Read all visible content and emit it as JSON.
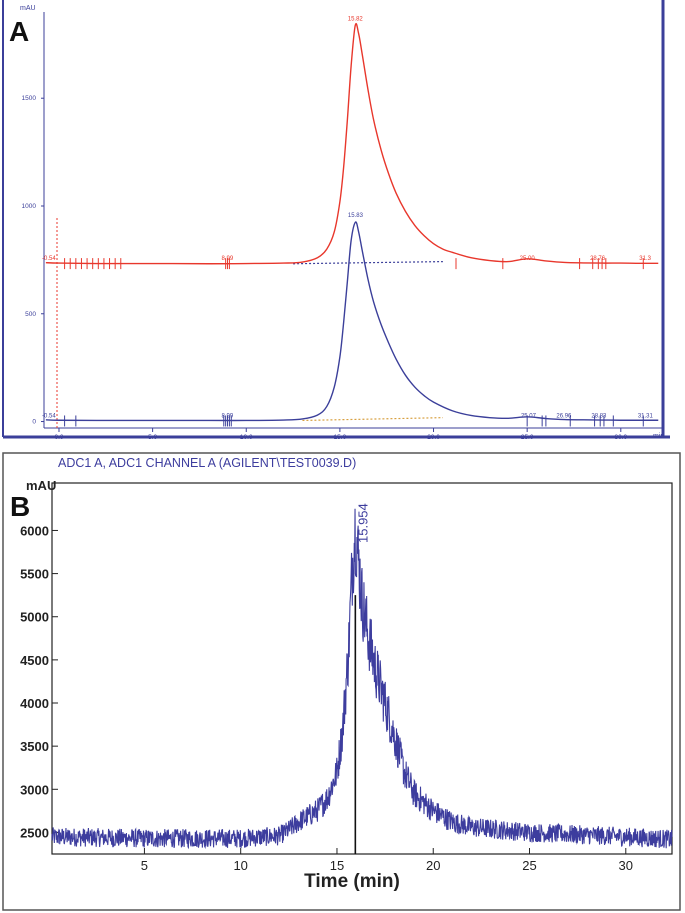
{
  "figure": {
    "panel_a_letter": "A",
    "panel_b_letter": "B"
  },
  "chart_data": [
    {
      "type": "line",
      "panel": "A",
      "ylabel": "mAU",
      "xunit": "min",
      "xlim": [
        -0.8,
        32.2
      ],
      "ylim": [
        -30,
        1900
      ],
      "x_ticks": [
        0.0,
        5.0,
        10.0,
        15.0,
        20.0,
        25.0,
        30.0
      ],
      "x_tick_labels": [
        "0.0",
        "5.0",
        "10.0",
        "15.0",
        "20.0",
        "25.0",
        "30.0"
      ],
      "y_ticks": [
        0,
        500,
        1000,
        1500
      ],
      "y_tick_labels": [
        "0",
        "500",
        "1000",
        "1500"
      ],
      "grid": false,
      "series": [
        {
          "color": "#e8372c",
          "baseline": 735,
          "x": [
            -0.7,
            0.0,
            2.0,
            5.0,
            8.0,
            10.0,
            12.0,
            13.0,
            13.8,
            14.3,
            14.7,
            15.0,
            15.2,
            15.4,
            15.6,
            15.82,
            16.0,
            16.2,
            16.5,
            16.8,
            17.2,
            17.6,
            18.0,
            18.5,
            19.0,
            19.5,
            20.0,
            20.5,
            21.0,
            22.0,
            23.0,
            24.0,
            25.0,
            26.0,
            27.0,
            28.0,
            29.0,
            30.0,
            31.0,
            32.0
          ],
          "y": [
            737,
            735,
            733,
            733,
            732,
            733,
            735,
            740,
            760,
            800,
            880,
            1020,
            1180,
            1400,
            1650,
            1838,
            1800,
            1700,
            1540,
            1400,
            1260,
            1150,
            1060,
            975,
            910,
            862,
            825,
            800,
            785,
            760,
            747,
            742,
            755,
            745,
            738,
            736,
            735,
            735,
            734,
            734
          ],
          "peak_labels": [
            {
              "x": -0.54,
              "label": "-0.54"
            },
            {
              "x": 8.99,
              "label": "8.99"
            },
            {
              "x": 15.82,
              "label": "15.82"
            },
            {
              "x": 25.0,
              "label": "25.00"
            },
            {
              "x": 28.76,
              "label": "28.76"
            },
            {
              "x": 31.3,
              "label": "31.3"
            }
          ],
          "event_marks_x": [
            0.3,
            0.6,
            0.9,
            1.2,
            1.5,
            1.8,
            2.1,
            2.4,
            2.7,
            3.0,
            3.3,
            8.9,
            9.0,
            9.1,
            21.2,
            23.7,
            27.8,
            28.5,
            28.8,
            29.0,
            29.2,
            31.2
          ]
        },
        {
          "color": "#3b3f9a",
          "baseline": 5,
          "x": [
            -0.7,
            0.0,
            2.0,
            5.0,
            8.0,
            10.0,
            12.0,
            13.0,
            13.8,
            14.3,
            14.7,
            15.0,
            15.2,
            15.4,
            15.6,
            15.83,
            16.0,
            16.2,
            16.5,
            16.8,
            17.2,
            17.6,
            18.0,
            18.5,
            19.0,
            19.5,
            20.0,
            21.0,
            22.0,
            23.0,
            24.0,
            25.0,
            26.0,
            27.0,
            28.0,
            29.0,
            30.0,
            31.0,
            32.0
          ],
          "y": [
            8,
            6,
            5,
            5,
            5,
            5,
            7,
            12,
            30,
            70,
            160,
            300,
            460,
            650,
            840,
            925,
            880,
            790,
            660,
            555,
            450,
            365,
            290,
            215,
            160,
            120,
            90,
            50,
            28,
            18,
            15,
            22,
            14,
            9,
            8,
            7,
            6,
            6,
            6
          ],
          "peak_labels": [
            {
              "x": -0.54,
              "label": "-0.54"
            },
            {
              "x": 8.99,
              "label": "8.99"
            },
            {
              "x": 15.83,
              "label": "15.83"
            },
            {
              "x": 25.07,
              "label": "25.07"
            },
            {
              "x": 26.96,
              "label": "26.96"
            },
            {
              "x": 28.83,
              "label": "28.83"
            },
            {
              "x": 31.31,
              "label": "31.31"
            }
          ],
          "event_marks_x": [
            0.3,
            0.9,
            8.8,
            8.9,
            9.0,
            9.1,
            9.2,
            25.0,
            25.8,
            26.0,
            27.3,
            28.6,
            28.9,
            29.1,
            29.6,
            31.2
          ]
        }
      ],
      "dashed_baselines": [
        {
          "color": "#3b3f9a",
          "x0": 12.5,
          "x1": 20.5,
          "y0": 732,
          "y1": 742
        },
        {
          "color": "#d8a040",
          "x0": 13.0,
          "x1": 20.5,
          "y0": 5,
          "y1": 18
        }
      ]
    },
    {
      "type": "line",
      "panel": "B",
      "title": "ADC1 A, ADC1 CHANNEL A (AGILENT\\TEST0039.D)",
      "ylabel": "mAU",
      "xlabel": "Time (min)",
      "xlim": [
        0.2,
        32.4
      ],
      "ylim": [
        2250,
        6550
      ],
      "x_ticks": [
        5,
        10,
        15,
        20,
        25,
        30
      ],
      "y_ticks": [
        2500,
        3000,
        3500,
        4000,
        4500,
        5000,
        5500,
        6000
      ],
      "grid": false,
      "peak_label": {
        "x": 15.954,
        "label": "15.954"
      },
      "color": "#3d3d9e",
      "noise_amplitude": 110,
      "envelope": {
        "x": [
          0.2,
          5,
          10,
          12,
          12.5,
          13,
          14,
          14.5,
          15,
          15.3,
          15.6,
          15.8,
          15.954,
          16.1,
          16.3,
          16.6,
          17,
          17.5,
          18,
          18.5,
          19,
          20,
          21,
          22,
          25,
          28,
          30,
          32.4
        ],
        "y": [
          2450,
          2430,
          2430,
          2460,
          2530,
          2620,
          2760,
          2900,
          3200,
          3700,
          4600,
          5600,
          6050,
          5700,
          5200,
          4800,
          4400,
          4000,
          3600,
          3200,
          2950,
          2750,
          2620,
          2560,
          2500,
          2470,
          2450,
          2420
        ]
      }
    }
  ]
}
